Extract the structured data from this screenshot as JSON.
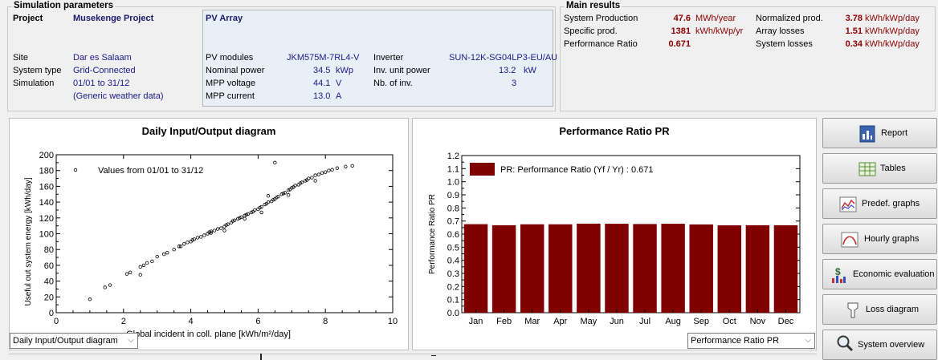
{
  "sim_params": {
    "title": "Simulation parameters",
    "project_label": "Project",
    "project_value": "Musekenge Project",
    "site_label": "Site",
    "site_value": "Dar es Salaam",
    "system_type_label": "System type",
    "system_type_value": "Grid-Connected",
    "simulation_label": "Simulation",
    "simulation_value": "01/01 to 31/12",
    "weather_value": "(Generic weather data)",
    "pv_array_title": "PV Array",
    "pv_modules_label": "PV modules",
    "pv_modules_value": "JKM575M-7RL4-V",
    "nominal_power_label": "Nominal power",
    "nominal_power_value": "34.5",
    "nominal_power_unit": "kWp",
    "mpp_voltage_label": "MPP voltage",
    "mpp_voltage_value": "44.1",
    "mpp_voltage_unit": "V",
    "mpp_current_label": "MPP current",
    "mpp_current_value": "13.0",
    "mpp_current_unit": "A",
    "inverter_label": "Inverter",
    "inverter_value": "SUN-12K-SG04LP3-EU/AU",
    "inv_unit_power_label": "Inv. unit power",
    "inv_unit_power_value": "13.2",
    "inv_unit_power_unit": "kW",
    "nb_inv_label": "Nb. of inv.",
    "nb_inv_value": "3"
  },
  "main_results": {
    "title": "Main results",
    "system_production_label": "System Production",
    "system_production_value": "47.6",
    "system_production_unit": "MWh/year",
    "specific_prod_label": "Specific prod.",
    "specific_prod_value": "1381",
    "specific_prod_unit": "kWh/kWp/yr",
    "performance_ratio_label": "Performance Ratio",
    "performance_ratio_value": "0.671",
    "normalized_prod_label": "Normalized prod.",
    "normalized_prod_value": "3.78",
    "normalized_prod_unit": "kWh/kWp/day",
    "array_losses_label": "Array losses",
    "array_losses_value": "1.51",
    "array_losses_unit": "kWh/kWp/day",
    "system_losses_label": "System losses",
    "system_losses_value": "0.34",
    "system_losses_unit": "kWh/kWp/day"
  },
  "left_combo": {
    "value": "Daily Input/Output diagram"
  },
  "right_combo": {
    "value": "Performance Ratio PR"
  },
  "buttons": {
    "report": "Report",
    "tables": "Tables",
    "predef_graphs": "Predef. graphs",
    "hourly_graphs": "Hourly graphs",
    "economic_evaluation": "Economic evaluation",
    "loss_diagram": "Loss diagram",
    "system_overview": "System overview"
  },
  "colors": {
    "bar": "#800000",
    "accent_text": "#8b0000",
    "value_text": "#1a1a8a"
  },
  "chart_data": [
    {
      "type": "scatter",
      "title": "Daily Input/Output diagram",
      "xlabel": "Global incident in coll. plane [kWh/m²/day]",
      "ylabel": "Useful out system energy [kWh/day]",
      "legend": "Values from 01/01 to 31/12",
      "xlim": [
        0,
        10
      ],
      "ylim": [
        0,
        200
      ],
      "xticks": [
        0,
        2,
        4,
        6,
        8,
        10
      ],
      "yticks": [
        0,
        20,
        40,
        60,
        80,
        100,
        120,
        140,
        160,
        180,
        200
      ],
      "x": [
        1.0,
        1.45,
        1.6,
        2.1,
        2.2,
        2.5,
        2.6,
        2.7,
        2.85,
        3.0,
        3.2,
        3.3,
        3.5,
        3.65,
        3.8,
        3.9,
        4.0,
        4.05,
        4.1,
        4.2,
        4.3,
        4.4,
        4.5,
        4.55,
        4.6,
        4.7,
        4.8,
        4.9,
        5.0,
        5.05,
        5.1,
        5.2,
        5.25,
        5.3,
        5.4,
        5.45,
        5.5,
        5.6,
        5.65,
        5.7,
        5.8,
        5.85,
        5.9,
        6.0,
        6.05,
        6.1,
        6.2,
        6.25,
        6.3,
        6.4,
        6.45,
        6.5,
        6.55,
        6.6,
        6.7,
        6.75,
        6.8,
        6.9,
        6.95,
        7.0,
        7.05,
        7.1,
        7.2,
        7.25,
        7.3,
        7.4,
        7.45,
        7.5,
        7.6,
        7.7,
        7.8,
        7.9,
        8.0,
        8.1,
        8.2,
        8.35,
        8.6,
        8.8,
        6.5,
        6.3,
        4.6,
        5.0,
        3.7,
        2.5,
        5.6,
        6.9,
        7.7,
        6.1
      ],
      "y": [
        17,
        32,
        35,
        49,
        51,
        58,
        60,
        63,
        65,
        71,
        74,
        76,
        80,
        84,
        87,
        89,
        90,
        92,
        93,
        95,
        96,
        98,
        100,
        102,
        103,
        104,
        106,
        107,
        109,
        111,
        112,
        114,
        116,
        117,
        119,
        120,
        121,
        123,
        124,
        125,
        127,
        128,
        130,
        131,
        133,
        134,
        137,
        138,
        140,
        141,
        143,
        144,
        146,
        147,
        150,
        151,
        152,
        155,
        156,
        158,
        159,
        161,
        162,
        164,
        165,
        167,
        168,
        170,
        171,
        174,
        175,
        177,
        178,
        180,
        181,
        183,
        185,
        186,
        190,
        148,
        101,
        104,
        84,
        48,
        119,
        149,
        167,
        127
      ]
    },
    {
      "type": "bar",
      "title": "Performance Ratio PR",
      "ylabel": "Performance Ratio PR",
      "legend": "PR: Performance Ratio (Yf / Yr) :  0.671",
      "categories": [
        "Jan",
        "Feb",
        "Mar",
        "Apr",
        "May",
        "Jun",
        "Jul",
        "Aug",
        "Sep",
        "Oct",
        "Nov",
        "Dec"
      ],
      "values": [
        0.676,
        0.668,
        0.675,
        0.675,
        0.68,
        0.679,
        0.677,
        0.679,
        0.674,
        0.667,
        0.668,
        0.668
      ],
      "ylim": [
        0,
        1.2
      ],
      "yticks": [
        0,
        0.1,
        0.2,
        0.3,
        0.4,
        0.5,
        0.6,
        0.7,
        0.8,
        0.9,
        1.0,
        1.1,
        1.2
      ],
      "ytick_labels": [
        "0.0",
        "0.1",
        "0.2",
        "0.3",
        "0.4",
        "0.5",
        "0.6",
        "0.7",
        "0.8",
        "0.9",
        "1.0",
        "1.1",
        "1.2"
      ]
    }
  ]
}
